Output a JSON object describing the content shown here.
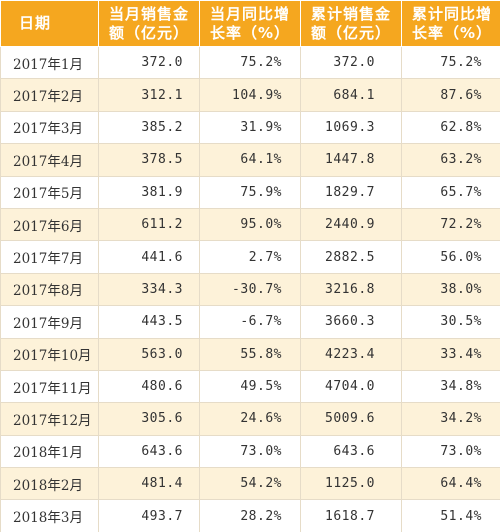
{
  "table": {
    "headers": [
      "日期",
      "当月销售金\n额（亿元）",
      "当月同比增\n长率（%）",
      "累计销售金\n额（亿元）",
      "累计同比增\n长率（%）"
    ],
    "rows": [
      [
        "2017年1月",
        "372.0",
        "75.2%",
        "372.0",
        "75.2%"
      ],
      [
        "2017年2月",
        "312.1",
        "104.9%",
        "684.1",
        "87.6%"
      ],
      [
        "2017年3月",
        "385.2",
        "31.9%",
        "1069.3",
        "62.8%"
      ],
      [
        "2017年4月",
        "378.5",
        "64.1%",
        "1447.8",
        "63.2%"
      ],
      [
        "2017年5月",
        "381.9",
        "75.9%",
        "1829.7",
        "65.7%"
      ],
      [
        "2017年6月",
        "611.2",
        "95.0%",
        "2440.9",
        "72.2%"
      ],
      [
        "2017年7月",
        "441.6",
        "2.7%",
        "2882.5",
        "56.0%"
      ],
      [
        "2017年8月",
        "334.3",
        "-30.7%",
        "3216.8",
        "38.0%"
      ],
      [
        "2017年9月",
        "443.5",
        "-6.7%",
        "3660.3",
        "30.5%"
      ],
      [
        "2017年10月",
        "563.0",
        "55.8%",
        "4223.4",
        "33.4%"
      ],
      [
        "2017年11月",
        "480.6",
        "49.5%",
        "4704.0",
        "34.8%"
      ],
      [
        "2017年12月",
        "305.6",
        "24.6%",
        "5009.6",
        "34.2%"
      ],
      [
        "2018年1月",
        "643.6",
        "73.0%",
        "643.6",
        "73.0%"
      ],
      [
        "2018年2月",
        "481.4",
        "54.2%",
        "1125.0",
        "64.4%"
      ],
      [
        "2018年3月",
        "493.7",
        "28.2%",
        "1618.7",
        "51.4%"
      ]
    ]
  },
  "colors": {
    "header_bg": "#f5a71f",
    "header_text": "#ffffff",
    "stripe": "#fdf2d9"
  }
}
